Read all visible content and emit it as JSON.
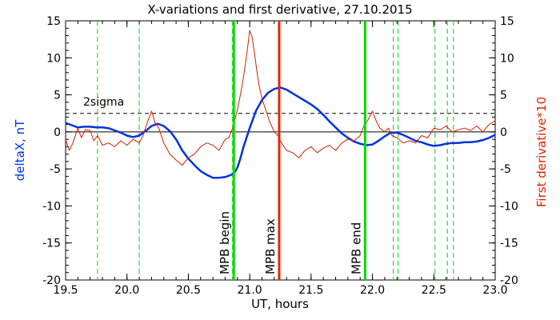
{
  "chart_data": {
    "type": "line",
    "title": "X-variations and first derivative, 27.10.2015",
    "xlabel": "UT, hours",
    "ylabel_left": "deltaX, nT",
    "ylabel_right": "First derivative*10",
    "xlim": [
      19.5,
      23.0
    ],
    "ylim": [
      -20,
      15
    ],
    "xticks": [
      "19.5",
      "20.0",
      "20.5",
      "21.0",
      "21.5",
      "22.0",
      "22.5",
      "23.0"
    ],
    "yticks": [
      "-20",
      "-15",
      "-10",
      "-5",
      "0",
      "5",
      "10",
      "15"
    ],
    "sigma_label": "2sigma",
    "sigma_level": 2.5,
    "colors": {
      "deltaX": "#0033dd",
      "derivative": "#cc2200",
      "begin_end": "#00dd00",
      "max": "#ee2200",
      "dashed": "#00cc00"
    },
    "series": [
      {
        "key": "deltaX",
        "x": [
          19.5,
          19.55,
          19.6,
          19.65,
          19.7,
          19.75,
          19.8,
          19.85,
          19.9,
          19.95,
          20.0,
          20.05,
          20.1,
          20.15,
          20.2,
          20.25,
          20.3,
          20.35,
          20.4,
          20.45,
          20.5,
          20.55,
          20.6,
          20.65,
          20.7,
          20.75,
          20.8,
          20.85,
          20.88,
          20.9,
          20.92,
          20.95,
          21.0,
          21.05,
          21.1,
          21.15,
          21.2,
          21.25,
          21.3,
          21.35,
          21.4,
          21.45,
          21.5,
          21.55,
          21.6,
          21.65,
          21.7,
          21.75,
          21.8,
          21.85,
          21.9,
          21.95,
          22.0,
          22.05,
          22.1,
          22.15,
          22.2,
          22.25,
          22.3,
          22.35,
          22.4,
          22.45,
          22.5,
          22.55,
          22.6,
          22.65,
          22.7,
          22.75,
          22.8,
          22.85,
          22.9,
          22.95,
          23.0
        ],
        "y": [
          1.2,
          0.9,
          0.6,
          0.7,
          0.7,
          0.6,
          0.6,
          0.5,
          0.2,
          -0.1,
          -0.5,
          -0.7,
          -0.5,
          0.1,
          0.8,
          1.1,
          0.8,
          0.1,
          -1.0,
          -2.5,
          -3.6,
          -4.5,
          -5.3,
          -5.8,
          -6.2,
          -6.2,
          -6.1,
          -5.8,
          -5.4,
          -4.8,
          -3.8,
          -2.0,
          0.5,
          2.8,
          4.3,
          5.3,
          5.8,
          6.0,
          5.7,
          5.2,
          4.7,
          4.2,
          3.7,
          3.1,
          2.3,
          1.4,
          0.6,
          -0.2,
          -0.8,
          -1.3,
          -1.6,
          -1.8,
          -1.7,
          -1.2,
          -0.6,
          -0.1,
          -0.1,
          -0.4,
          -0.8,
          -1.2,
          -1.4,
          -1.7,
          -1.9,
          -1.8,
          -1.6,
          -1.5,
          -1.5,
          -1.4,
          -1.4,
          -1.3,
          -1.1,
          -0.8,
          -0.4
        ]
      },
      {
        "key": "derivative",
        "x": [
          19.5,
          19.53,
          19.56,
          19.6,
          19.63,
          19.66,
          19.7,
          19.73,
          19.76,
          19.8,
          19.85,
          19.9,
          19.95,
          20.0,
          20.05,
          20.1,
          20.13,
          20.16,
          20.2,
          20.23,
          20.26,
          20.3,
          20.35,
          20.4,
          20.45,
          20.5,
          20.55,
          20.6,
          20.65,
          20.7,
          20.75,
          20.8,
          20.83,
          20.86,
          20.9,
          20.93,
          20.95,
          20.98,
          21.0,
          21.02,
          21.04,
          21.06,
          21.08,
          21.1,
          21.13,
          21.16,
          21.2,
          21.23,
          21.26,
          21.3,
          21.35,
          21.4,
          21.45,
          21.5,
          21.55,
          21.6,
          21.65,
          21.7,
          21.75,
          21.8,
          21.85,
          21.9,
          21.93,
          21.96,
          22.0,
          22.03,
          22.06,
          22.1,
          22.13,
          22.16,
          22.2,
          22.25,
          22.3,
          22.35,
          22.4,
          22.45,
          22.5,
          22.55,
          22.6,
          22.65,
          22.7,
          22.75,
          22.8,
          22.85,
          22.9,
          22.95,
          23.0
        ],
        "y": [
          -1.0,
          -2.5,
          -1.5,
          0.5,
          -0.8,
          0.3,
          0.2,
          -1.2,
          -0.5,
          -1.8,
          -1.5,
          -2.0,
          -1.2,
          -1.8,
          -1.0,
          -1.5,
          -0.5,
          1.0,
          2.8,
          1.2,
          0.5,
          -1.5,
          -3.0,
          -3.8,
          -4.5,
          -3.5,
          -3.0,
          -2.0,
          -1.5,
          -1.8,
          -2.5,
          -1.0,
          -0.8,
          0.5,
          3.0,
          5.5,
          7.5,
          11.0,
          13.7,
          12.8,
          10.5,
          8.0,
          6.0,
          4.5,
          3.0,
          1.5,
          0.0,
          -0.5,
          -1.5,
          -2.5,
          -2.8,
          -3.5,
          -2.5,
          -2.0,
          -2.8,
          -2.2,
          -1.8,
          -2.5,
          -1.5,
          -1.0,
          -1.2,
          -0.5,
          0.8,
          1.5,
          2.8,
          1.5,
          0.5,
          0.0,
          0.5,
          -0.5,
          -0.8,
          -1.5,
          -1.2,
          -1.5,
          -0.5,
          -0.8,
          0.5,
          0.3,
          0.8,
          0.0,
          0.3,
          0.5,
          0.2,
          0.8,
          0.0,
          1.0,
          1.5
        ]
      }
    ],
    "markers": [
      {
        "key": "begin",
        "label": "MPB begin",
        "x": 20.87,
        "color": "#00dd00"
      },
      {
        "key": "max",
        "label": "MPB max",
        "x": 21.24,
        "color": "#ee2200"
      },
      {
        "key": "end",
        "label": "MPB end",
        "x": 21.94,
        "color": "#00dd00"
      }
    ],
    "dashed_x": [
      19.76,
      20.1,
      20.86,
      21.94,
      22.17,
      22.21,
      22.51,
      22.61,
      22.66
    ]
  }
}
